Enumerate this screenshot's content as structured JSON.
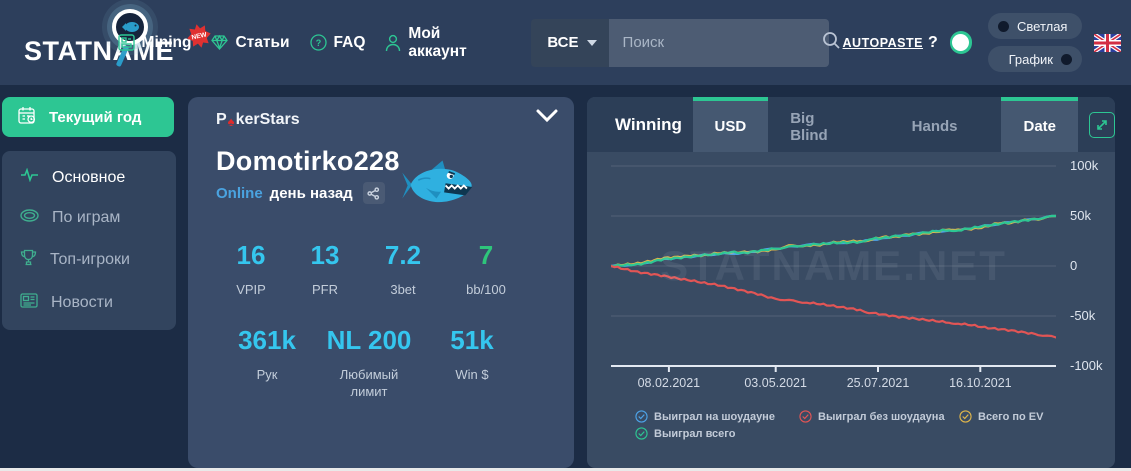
{
  "header": {
    "logo": "STATNAME",
    "nav": [
      {
        "label": "Mining",
        "badge": "NEW"
      },
      {
        "label": "Статьи"
      },
      {
        "label": "FAQ"
      },
      {
        "label": "Мой аккаунт"
      }
    ],
    "search": {
      "filter": "ВСЕ",
      "placeholder": "Поиск"
    },
    "autopaste_label": "AUTOPASTE",
    "autopaste_help": "?",
    "theme_pill": "Светлая",
    "chart_pill": "График"
  },
  "sidebar": {
    "year_button": "Текущий год",
    "items": [
      {
        "label": "Основное"
      },
      {
        "label": "По играм"
      },
      {
        "label": "Топ-игроки"
      },
      {
        "label": "Новости"
      }
    ]
  },
  "player": {
    "room": "PokerStars",
    "room_p": "P",
    "room_rest": "kerStars",
    "name": "Domotirko228",
    "online": "Online",
    "last_seen": "день назад",
    "stats_row1": [
      {
        "value": "16",
        "label": "VPIP",
        "color": "#35c6ee"
      },
      {
        "value": "13",
        "label": "PFR",
        "color": "#35c6ee"
      },
      {
        "value": "7.2",
        "label": "3bet",
        "color": "#35c6ee"
      },
      {
        "value": "7",
        "label": "bb/100",
        "color": "#2ec57b"
      }
    ],
    "stats_row2": [
      {
        "value": "361k",
        "label": "Рук",
        "color": "#35c6ee"
      },
      {
        "value": "NL 200",
        "label": "Любимый лимит",
        "color": "#35c6ee"
      },
      {
        "value": "51k",
        "label": "Win $",
        "color": "#35c6ee"
      }
    ]
  },
  "panel": {
    "title": "Winning",
    "tabs": [
      {
        "label": "USD",
        "active": true
      },
      {
        "label": "Big Blind",
        "active": false
      },
      {
        "label": "Hands",
        "active": false
      },
      {
        "label": "Date",
        "active": true
      }
    ]
  },
  "chart_data": {
    "type": "line",
    "title": "Winning",
    "unit": "USD",
    "ylim": [
      -100000,
      100000
    ],
    "grid": true,
    "legend_position": "bottom",
    "watermark": "STATNAME.NET",
    "y_ticks": [
      {
        "label": "100k",
        "v": 100
      },
      {
        "label": "50k",
        "v": 50
      },
      {
        "label": "0",
        "v": 0
      },
      {
        "label": "-50k",
        "v": -50
      },
      {
        "label": "-100k",
        "v": -100
      }
    ],
    "x_ticks": [
      {
        "label": "08.02.2021",
        "t": 0.13
      },
      {
        "label": "03.05.2021",
        "t": 0.37
      },
      {
        "label": "25.07.2021",
        "t": 0.6
      },
      {
        "label": "16.10.2021",
        "t": 0.83
      }
    ],
    "series": [
      {
        "name": "Выиграл на шоудауне",
        "color": "#4da3e8",
        "values_in_k": true,
        "points": [
          [
            0,
            0
          ],
          [
            0.06,
            1.5
          ],
          [
            0.12,
            7
          ],
          [
            0.18,
            9.5
          ],
          [
            0.24,
            12
          ],
          [
            0.3,
            13
          ],
          [
            0.36,
            17
          ],
          [
            0.44,
            21
          ],
          [
            0.5,
            23
          ],
          [
            0.56,
            24
          ],
          [
            0.61,
            28
          ],
          [
            0.67,
            31
          ],
          [
            0.73,
            35
          ],
          [
            0.78,
            35.5
          ],
          [
            0.84,
            40
          ],
          [
            0.9,
            44
          ],
          [
            0.96,
            47.5
          ],
          [
            1,
            50
          ]
        ]
      },
      {
        "name": "Всего по EV",
        "color": "#dfb54b",
        "values_in_k": true,
        "points": [
          [
            0,
            0
          ],
          [
            0.03,
            1.5
          ],
          [
            0.06,
            2.5
          ],
          [
            0.09,
            5
          ],
          [
            0.12,
            8
          ],
          [
            0.15,
            9
          ],
          [
            0.18,
            10.5
          ],
          [
            0.21,
            10.5
          ],
          [
            0.24,
            13
          ],
          [
            0.27,
            13.5
          ],
          [
            0.3,
            14
          ],
          [
            0.33,
            14.5
          ],
          [
            0.36,
            16
          ],
          [
            0.4,
            20
          ],
          [
            0.44,
            20.5
          ],
          [
            0.47,
            21
          ],
          [
            0.5,
            23.5
          ],
          [
            0.53,
            24.5
          ],
          [
            0.56,
            25
          ],
          [
            0.58,
            26
          ],
          [
            0.61,
            29
          ],
          [
            0.64,
            29
          ],
          [
            0.67,
            32
          ],
          [
            0.7,
            32
          ],
          [
            0.73,
            34
          ],
          [
            0.76,
            37
          ],
          [
            0.78,
            36.5
          ],
          [
            0.81,
            37
          ],
          [
            0.84,
            39
          ],
          [
            0.87,
            43
          ],
          [
            0.9,
            43
          ],
          [
            0.93,
            46
          ],
          [
            0.96,
            47
          ],
          [
            1,
            50
          ]
        ]
      },
      {
        "name": "Выиграл всего",
        "color": "#2dc693",
        "values_in_k": true,
        "points": [
          [
            0,
            0
          ],
          [
            0.03,
            1
          ],
          [
            0.06,
            1.5
          ],
          [
            0.09,
            4
          ],
          [
            0.12,
            7
          ],
          [
            0.15,
            8
          ],
          [
            0.18,
            9.5
          ],
          [
            0.21,
            11
          ],
          [
            0.24,
            12
          ],
          [
            0.27,
            14
          ],
          [
            0.3,
            13
          ],
          [
            0.33,
            15
          ],
          [
            0.36,
            17
          ],
          [
            0.4,
            19
          ],
          [
            0.44,
            21
          ],
          [
            0.47,
            22
          ],
          [
            0.5,
            23
          ],
          [
            0.53,
            23.5
          ],
          [
            0.56,
            24
          ],
          [
            0.58,
            27
          ],
          [
            0.61,
            28
          ],
          [
            0.64,
            30
          ],
          [
            0.67,
            31
          ],
          [
            0.7,
            33
          ],
          [
            0.73,
            35
          ],
          [
            0.76,
            36
          ],
          [
            0.78,
            35.5
          ],
          [
            0.81,
            38
          ],
          [
            0.84,
            40
          ],
          [
            0.87,
            42
          ],
          [
            0.9,
            44
          ],
          [
            0.93,
            45.5
          ],
          [
            0.96,
            47.5
          ],
          [
            1,
            50
          ]
        ]
      },
      {
        "name": "Выиграл без шоудауна",
        "color": "#e25555",
        "values_in_k": true,
        "points": [
          [
            0,
            0
          ],
          [
            0.03,
            -3
          ],
          [
            0.06,
            -6
          ],
          [
            0.09,
            -8
          ],
          [
            0.12,
            -10
          ],
          [
            0.15,
            -12.5
          ],
          [
            0.18,
            -14.5
          ],
          [
            0.21,
            -17
          ],
          [
            0.24,
            -19
          ],
          [
            0.27,
            -22
          ],
          [
            0.3,
            -25
          ],
          [
            0.33,
            -28
          ],
          [
            0.36,
            -32
          ],
          [
            0.4,
            -34.5
          ],
          [
            0.44,
            -36.5
          ],
          [
            0.47,
            -38
          ],
          [
            0.5,
            -40
          ],
          [
            0.53,
            -42
          ],
          [
            0.56,
            -44
          ],
          [
            0.58,
            -46.5
          ],
          [
            0.61,
            -48.5
          ],
          [
            0.64,
            -50.5
          ],
          [
            0.67,
            -52
          ],
          [
            0.7,
            -53.5
          ],
          [
            0.73,
            -55
          ],
          [
            0.76,
            -56.5
          ],
          [
            0.78,
            -57.5
          ],
          [
            0.81,
            -59
          ],
          [
            0.84,
            -61.5
          ],
          [
            0.87,
            -63
          ],
          [
            0.9,
            -64.5
          ],
          [
            0.93,
            -66.5
          ],
          [
            0.96,
            -68.5
          ],
          [
            1,
            -71.5
          ]
        ]
      }
    ],
    "legend": [
      {
        "label": "Выиграл на шоудауне",
        "color": "#4da3e8"
      },
      {
        "label": "Выиграл без шоудауна",
        "color": "#e25555"
      },
      {
        "label": "Всего по EV",
        "color": "#dfb54b"
      },
      {
        "label": "Выиграл всего",
        "color": "#2dc693"
      }
    ]
  }
}
